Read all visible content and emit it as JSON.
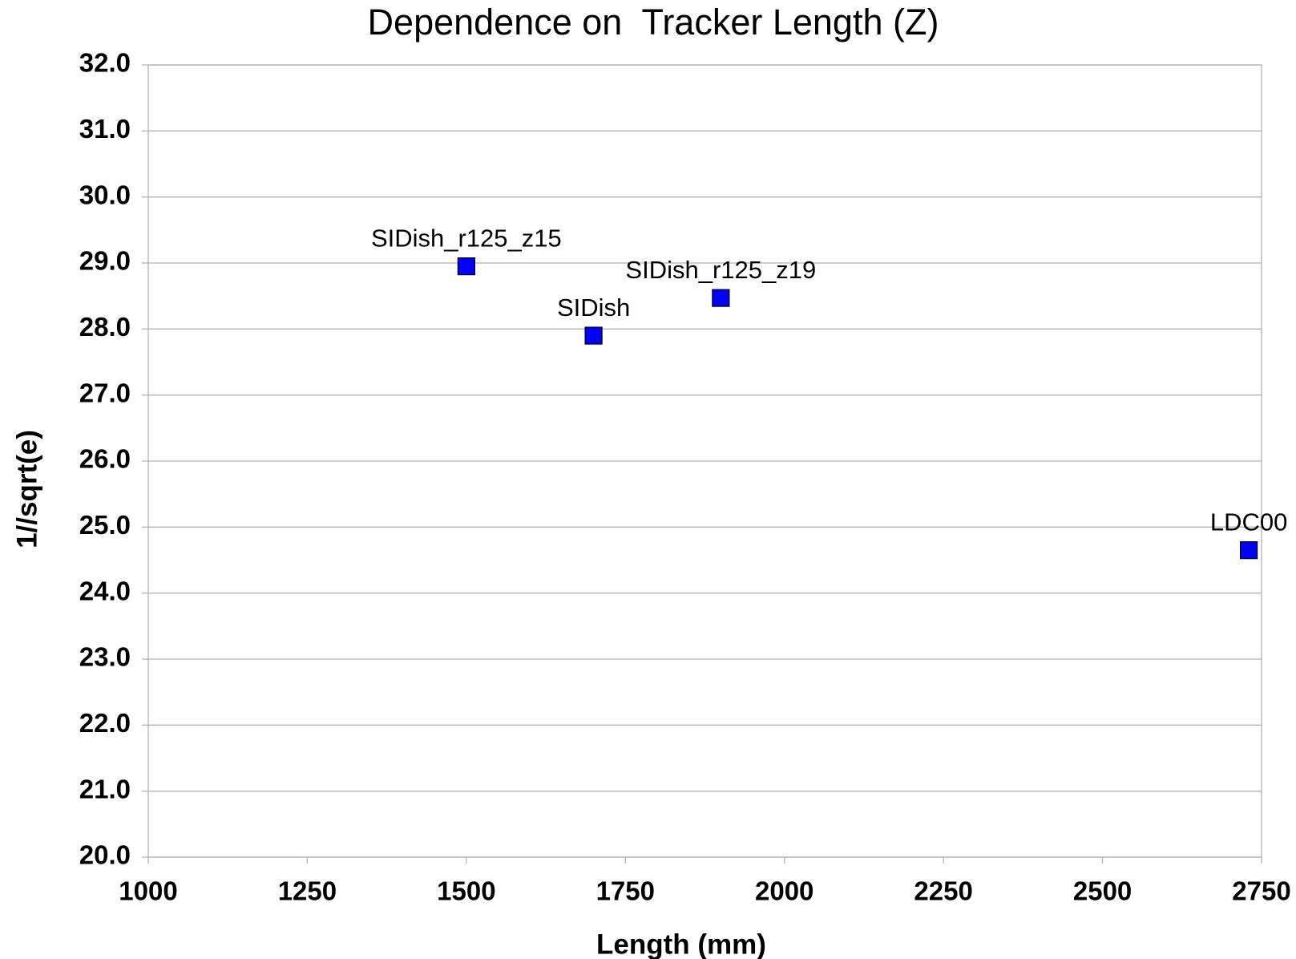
{
  "chart_data": {
    "type": "scatter",
    "title": "Dependence on  Tracker Length (Z)",
    "x_label": "Length (mm)",
    "y_label": "1//sqrt(e)",
    "x": [
      1500,
      1700,
      1900,
      2730
    ],
    "series": [
      {
        "name": "1//sqrt(e)",
        "color": "#0000ff",
        "values": [
          28.95,
          27.9,
          28.47,
          24.65
        ]
      }
    ],
    "labels": [
      "SIDish_r125_z15",
      "SIDish",
      "SIDish_r125_z19",
      "LDC00"
    ],
    "xlim": [
      1000,
      2750
    ],
    "xticks": [
      1000,
      1250,
      1500,
      1750,
      2000,
      2250,
      2500,
      2750
    ],
    "ylim": [
      20,
      32
    ],
    "yticks": [
      {
        "value": 20,
        "label": "20.0"
      },
      {
        "value": 21,
        "label": "21.0"
      },
      {
        "value": 22,
        "label": "22.0"
      },
      {
        "value": 23,
        "label": "23.0"
      },
      {
        "value": 24,
        "label": "24.0"
      },
      {
        "value": 25,
        "label": "25.0"
      },
      {
        "value": 26,
        "label": "26.0"
      },
      {
        "value": 27,
        "label": "27.0"
      },
      {
        "value": 28,
        "label": "28.0"
      },
      {
        "value": 29,
        "label": "29.0"
      },
      {
        "value": 30,
        "label": "30.0"
      },
      {
        "value": 31,
        "label": "31.0"
      },
      {
        "value": 32,
        "label": "32.0"
      }
    ],
    "grid": true
  }
}
